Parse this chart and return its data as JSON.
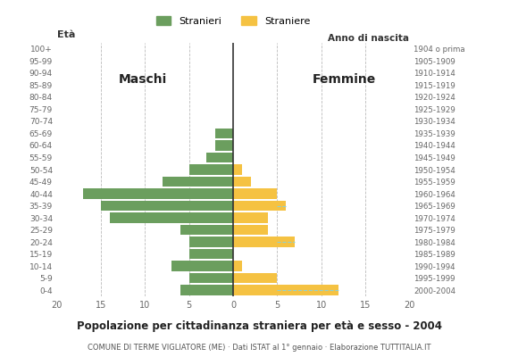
{
  "age_groups": [
    "0-4",
    "5-9",
    "10-14",
    "15-19",
    "20-24",
    "25-29",
    "30-34",
    "35-39",
    "40-44",
    "45-49",
    "50-54",
    "55-59",
    "60-64",
    "65-69",
    "70-74",
    "75-79",
    "80-84",
    "85-89",
    "90-94",
    "95-99",
    "100+"
  ],
  "birth_years": [
    "2000-2004",
    "1995-1999",
    "1990-1994",
    "1985-1989",
    "1980-1984",
    "1975-1979",
    "1970-1974",
    "1965-1969",
    "1960-1964",
    "1955-1959",
    "1950-1954",
    "1945-1949",
    "1940-1944",
    "1935-1939",
    "1930-1934",
    "1925-1929",
    "1920-1924",
    "1915-1919",
    "1910-1914",
    "1905-1909",
    "1904 o prima"
  ],
  "males": [
    6,
    5,
    7,
    5,
    5,
    6,
    14,
    15,
    17,
    8,
    5,
    3,
    2,
    2,
    0,
    0,
    0,
    0,
    0,
    0,
    0
  ],
  "females": [
    12,
    5,
    1,
    0,
    7,
    4,
    4,
    6,
    5,
    2,
    1,
    0,
    0,
    0,
    0,
    0,
    0,
    0,
    0,
    0,
    0
  ],
  "male_color": "#6b9e5e",
  "female_color": "#f5c242",
  "male_label": "Stranieri",
  "female_label": "Straniere",
  "label_eta": "Età",
  "label_anno": "Anno di nascita",
  "title": "Popolazione per cittadinanza straniera per età e sesso - 2004",
  "subtitle": "COMUNE DI TERME VIGLIATORE (ME) · Dati ISTAT al 1° gennaio · Elaborazione TUTTITALIA.IT",
  "maschi_label": "Maschi",
  "femmine_label": "Femmine",
  "xlim": 20,
  "bg_color": "#ffffff",
  "grid_color": "#bbbbbb",
  "center_line_color": "#333333",
  "dashed_female_color": "#90d0d0",
  "bar_height": 0.85
}
